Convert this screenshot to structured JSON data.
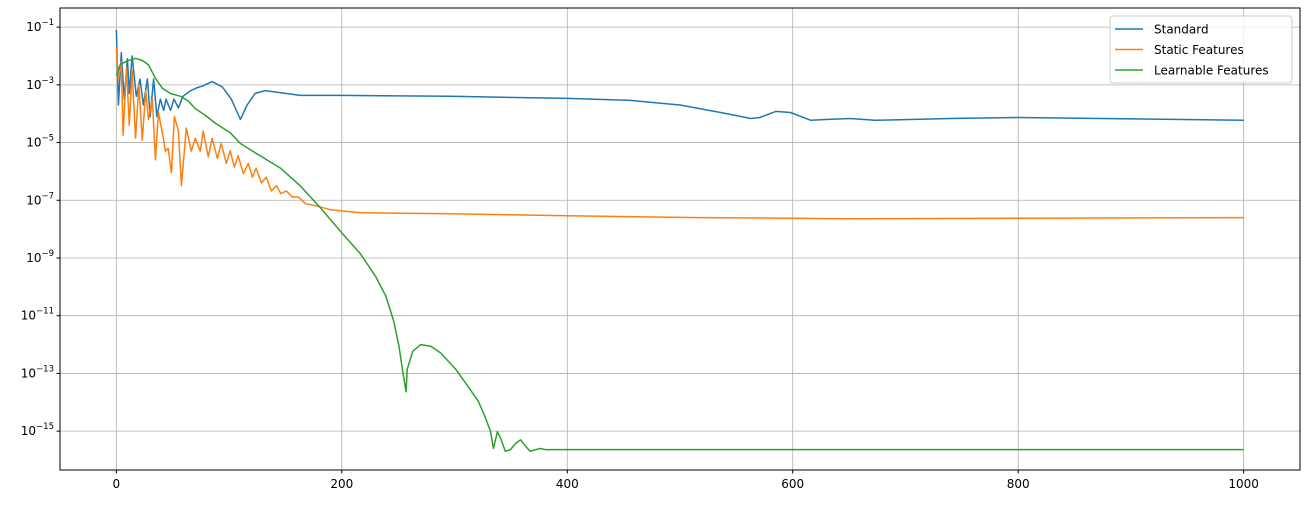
{
  "chart_data": {
    "type": "line",
    "title": "",
    "xlabel": "",
    "ylabel": "",
    "xlim": [
      -50,
      1050
    ],
    "ylim": [
      4.5e-17,
      0.46
    ],
    "yscale": "log",
    "grid": true,
    "legend_position": "top-right",
    "x_ticks": [
      0,
      200,
      400,
      600,
      800,
      1000
    ],
    "x_tick_labels": [
      "0",
      "200",
      "400",
      "600",
      "800",
      "1000"
    ],
    "y_ticks": [
      0.1,
      0.001,
      1e-05,
      1e-07,
      1e-09,
      1e-11,
      1e-13,
      1e-15
    ],
    "y_tick_labels": [
      {
        "base": "10",
        "exp": "−1"
      },
      {
        "base": "10",
        "exp": "−3"
      },
      {
        "base": "10",
        "exp": "−5"
      },
      {
        "base": "10",
        "exp": "−7"
      },
      {
        "base": "10",
        "exp": "−9"
      },
      {
        "base": "10",
        "exp": "−11"
      },
      {
        "base": "10",
        "exp": "−13"
      },
      {
        "base": "10",
        "exp": "−15"
      }
    ],
    "series": [
      {
        "name": "Standard",
        "color": "#1f77b4",
        "points": [
          [
            0,
            0.08
          ],
          [
            1.8,
            0.0002
          ],
          [
            4.4,
            0.013
          ],
          [
            7,
            0.00032
          ],
          [
            9.8,
            0.008
          ],
          [
            11.5,
            0.0005
          ],
          [
            14,
            0.01
          ],
          [
            17.7,
            0.0004
          ],
          [
            21,
            0.0016
          ],
          [
            24,
            0.0002
          ],
          [
            27.5,
            0.0016
          ],
          [
            30,
            8e-05
          ],
          [
            33,
            0.0016
          ],
          [
            36,
            8e-05
          ],
          [
            39,
            0.00032
          ],
          [
            42,
            0.00013
          ],
          [
            44,
            0.00032
          ],
          [
            48,
            0.00013
          ],
          [
            51,
            0.00032
          ],
          [
            55,
            0.00016
          ],
          [
            59,
            0.0004
          ],
          [
            66,
            0.00063
          ],
          [
            72,
            0.0008
          ],
          [
            76,
            0.0009
          ],
          [
            85,
            0.0013
          ],
          [
            94,
            0.00085
          ],
          [
            102,
            0.00032
          ],
          [
            110,
            6.3e-05
          ],
          [
            116,
            0.0002
          ],
          [
            123,
            0.0005
          ],
          [
            132,
            0.00063
          ],
          [
            145,
            0.00054
          ],
          [
            163,
            0.00043
          ],
          [
            200,
            0.00043
          ],
          [
            296,
            0.0004
          ],
          [
            400,
            0.00034
          ],
          [
            456,
            0.00029
          ],
          [
            500,
            0.0002
          ],
          [
            536,
            0.00011
          ],
          [
            563,
            6.8e-05
          ],
          [
            571,
            7.4e-05
          ],
          [
            585,
            0.00012
          ],
          [
            598,
            0.00011
          ],
          [
            616,
            5.9e-05
          ],
          [
            629,
            6.3e-05
          ],
          [
            651,
            6.8e-05
          ],
          [
            673,
            5.9e-05
          ],
          [
            740,
            6.8e-05
          ],
          [
            800,
            7.4e-05
          ],
          [
            873,
            6.8e-05
          ],
          [
            1000,
            5.9e-05
          ]
        ]
      },
      {
        "name": "Static Features",
        "color": "#ff7f0e",
        "points": [
          [
            0,
            0.02
          ],
          [
            1.8,
            0.0014
          ],
          [
            4.4,
            0.0063
          ],
          [
            6,
            1.8e-05
          ],
          [
            9,
            0.004
          ],
          [
            11.5,
            4e-05
          ],
          [
            14,
            0.0032
          ],
          [
            17,
            1.4e-05
          ],
          [
            20,
            0.001
          ],
          [
            23,
            1.2e-05
          ],
          [
            26,
            0.00063
          ],
          [
            28.5,
            6.3e-05
          ],
          [
            32,
            0.00032
          ],
          [
            34.6,
            2.5e-06
          ],
          [
            37.3,
            0.00011
          ],
          [
            41.7,
            1.4e-05
          ],
          [
            43.5,
            5e-06
          ],
          [
            46,
            6.3e-06
          ],
          [
            48.8,
            9e-07
          ],
          [
            51.5,
            8e-05
          ],
          [
            55,
            2.5e-05
          ],
          [
            57.7,
            3.2e-07
          ],
          [
            62,
            3.2e-05
          ],
          [
            66.5,
            5e-06
          ],
          [
            70,
            1.4e-05
          ],
          [
            74.5,
            5e-06
          ],
          [
            77,
            2.5e-05
          ],
          [
            81.6,
            3.2e-06
          ],
          [
            85,
            1.4e-05
          ],
          [
            89.6,
            2.8e-06
          ],
          [
            93,
            9.3e-06
          ],
          [
            97.6,
            1.9e-06
          ],
          [
            101,
            5.2e-06
          ],
          [
            104.7,
            1.4e-06
          ],
          [
            108,
            3.5e-06
          ],
          [
            112.7,
            8.3e-07
          ],
          [
            117,
            1.9e-06
          ],
          [
            120.7,
            6.3e-07
          ],
          [
            124,
            1.3e-06
          ],
          [
            128.7,
            4e-07
          ],
          [
            133,
            6.3e-07
          ],
          [
            137.5,
            2.1e-07
          ],
          [
            142,
            3.2e-07
          ],
          [
            146,
            1.7e-07
          ],
          [
            150.8,
            2.1e-07
          ],
          [
            156,
            1.3e-07
          ],
          [
            161.5,
            1.3e-07
          ],
          [
            167.7,
            7.6e-08
          ],
          [
            176.6,
            6.5e-08
          ],
          [
            190,
            4.7e-08
          ],
          [
            216.5,
            3.7e-08
          ],
          [
            296,
            3.4e-08
          ],
          [
            400,
            2.9e-08
          ],
          [
            518,
            2.5e-08
          ],
          [
            651,
            2.3e-08
          ],
          [
            1000,
            2.5e-08
          ]
        ]
      },
      {
        "name": "Learnable Features",
        "color": "#2ca02c",
        "points": [
          [
            0,
            0.0021
          ],
          [
            3.5,
            0.005
          ],
          [
            9,
            0.0066
          ],
          [
            17,
            0.0083
          ],
          [
            23,
            0.007
          ],
          [
            28.4,
            0.005
          ],
          [
            34.6,
            0.0017
          ],
          [
            40.8,
            0.00076
          ],
          [
            48,
            0.0005
          ],
          [
            57,
            0.0004
          ],
          [
            64,
            0.00027
          ],
          [
            70,
            0.00015
          ],
          [
            79,
            8.7e-05
          ],
          [
            88,
            4.6e-05
          ],
          [
            101,
            2.2e-05
          ],
          [
            110,
            9.3e-06
          ],
          [
            123,
            4.5e-06
          ],
          [
            145.5,
            1.3e-06
          ],
          [
            163,
            3.2e-07
          ],
          [
            181,
            5.5e-08
          ],
          [
            200,
            7.4e-09
          ],
          [
            216.5,
            1.4e-09
          ],
          [
            230,
            2.3e-10
          ],
          [
            239,
            4.8e-11
          ],
          [
            246,
            6.5e-12
          ],
          [
            250.7,
            8.7e-13
          ],
          [
            254,
            1.2e-13
          ],
          [
            257,
            2.3e-14
          ],
          [
            258,
            1.4e-13
          ],
          [
            263,
            5.9e-13
          ],
          [
            270,
            1e-12
          ],
          [
            279,
            8.7e-13
          ],
          [
            288,
            5e-13
          ],
          [
            301,
            1.4e-13
          ],
          [
            312,
            3.5e-14
          ],
          [
            321,
            1.1e-14
          ],
          [
            327,
            3.2e-15
          ],
          [
            332,
            9.5e-16
          ],
          [
            334.5,
            2.5e-16
          ],
          [
            338,
            9.5e-16
          ],
          [
            340.7,
            5.9e-16
          ],
          [
            345,
            2e-16
          ],
          [
            349.6,
            2.3e-16
          ],
          [
            354,
            3.7e-16
          ],
          [
            358.5,
            5e-16
          ],
          [
            363,
            3e-16
          ],
          [
            367,
            2e-16
          ],
          [
            376,
            2.5e-16
          ],
          [
            380.6,
            2.3e-16
          ],
          [
            394,
            2.3e-16
          ],
          [
            429,
            2.3e-16
          ],
          [
            1000,
            2.3e-16
          ]
        ]
      }
    ]
  }
}
